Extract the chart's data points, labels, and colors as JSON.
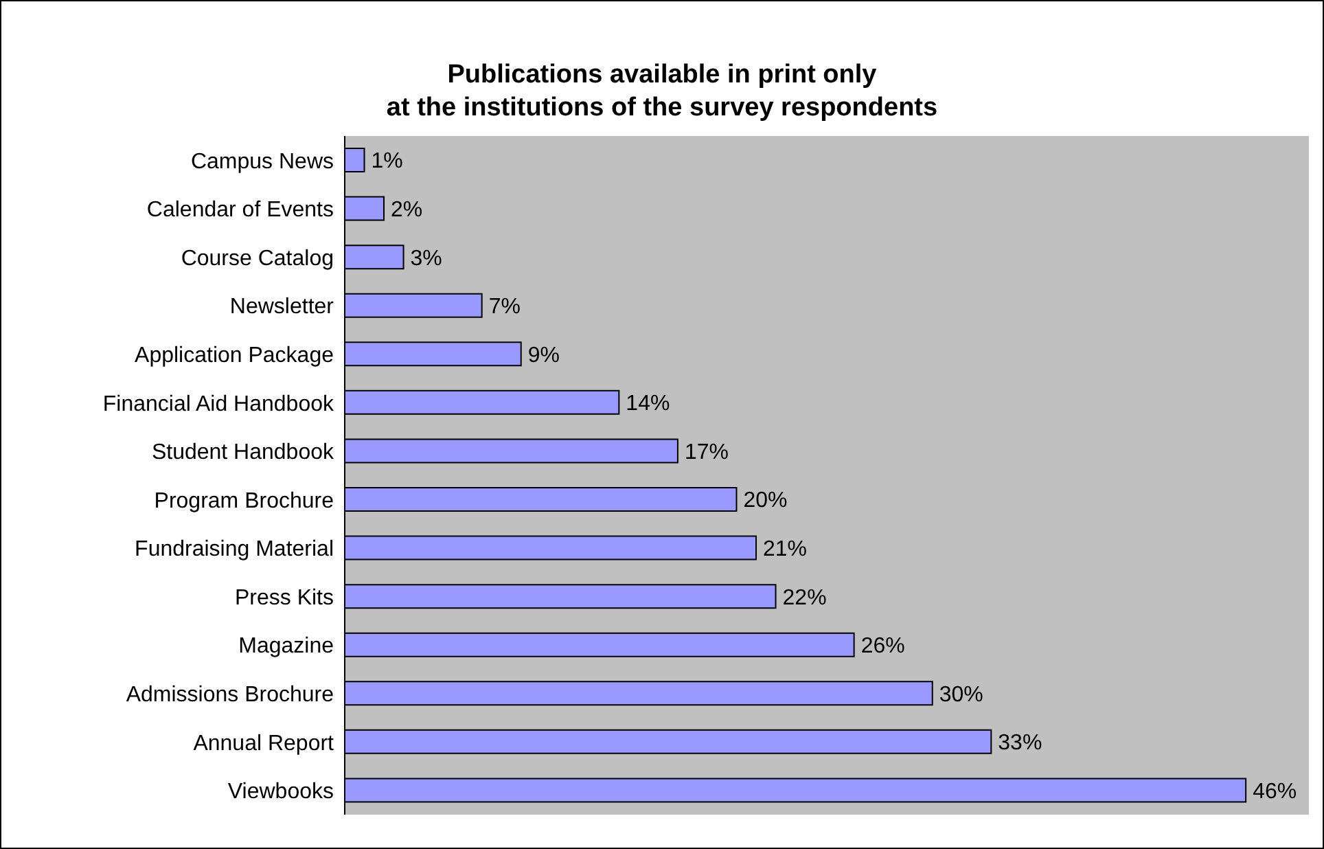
{
  "chart_data": {
    "type": "bar",
    "orientation": "horizontal",
    "title": "Publications available in print only\nat the institutions of the survey respondents",
    "categories": [
      "Campus News",
      "Calendar of Events",
      "Course Catalog",
      "Newsletter",
      "Application Package",
      "Financial Aid Handbook",
      "Student Handbook",
      "Program Brochure",
      "Fundraising Material",
      "Press Kits",
      "Magazine",
      "Admissions Brochure",
      "Annual Report",
      "Viewbooks"
    ],
    "values": [
      1,
      2,
      3,
      7,
      9,
      14,
      17,
      20,
      21,
      22,
      26,
      30,
      33,
      46
    ],
    "value_labels": [
      "1%",
      "2%",
      "3%",
      "7%",
      "9%",
      "14%",
      "17%",
      "20%",
      "21%",
      "22%",
      "26%",
      "30%",
      "33%",
      "46%"
    ],
    "color": "#9999ff",
    "grid": false
  }
}
